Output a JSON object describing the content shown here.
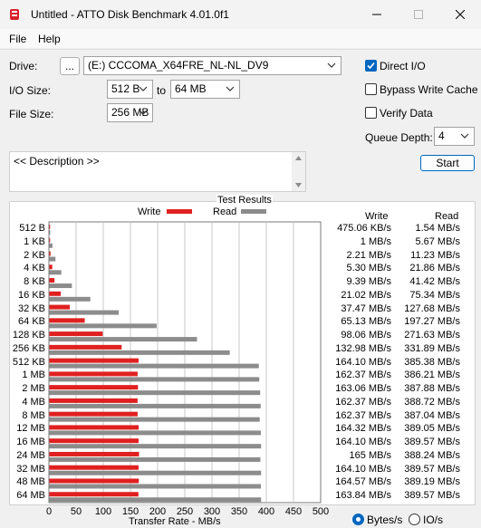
{
  "window": {
    "title": "Untitled - ATTO Disk Benchmark 4.01.0f1"
  },
  "menu": [
    "File",
    "Help"
  ],
  "settings": {
    "drive_label": "Drive:",
    "browse_label": "...",
    "drive_value": "(E:) CCCOMA_X64FRE_NL-NL_DV9",
    "io_size_label": "I/O Size:",
    "io_from": "512 B",
    "io_to_label": "to",
    "io_to": "64 MB",
    "file_size_label": "File Size:",
    "file_size": "256 MB",
    "direct_io_label": "Direct I/O",
    "direct_io_checked": true,
    "bypass_write_cache_label": "Bypass Write Cache",
    "bypass_write_cache_checked": false,
    "verify_data_label": "Verify Data",
    "verify_data_checked": false,
    "queue_depth_label": "Queue Depth:",
    "queue_depth": "4",
    "start_label": "Start",
    "description": "<< Description >>"
  },
  "results": {
    "title": "Test Results",
    "legend_write": "Write",
    "legend_read": "Read",
    "col_write": "Write",
    "col_read": "Read",
    "xlabel": "Transfer Rate - MB/s",
    "unit_bytes": "Bytes/s",
    "unit_io": "IO/s",
    "unit_selected": "bytes",
    "colors": {
      "write": "#e02020",
      "read": "#8c8c8c"
    }
  },
  "chart_data": {
    "type": "bar",
    "orientation": "horizontal",
    "categories": [
      "512 B",
      "1 KB",
      "2 KB",
      "4 KB",
      "8 KB",
      "16 KB",
      "32 KB",
      "64 KB",
      "128 KB",
      "256 KB",
      "512 KB",
      "1 MB",
      "2 MB",
      "4 MB",
      "8 MB",
      "12 MB",
      "16 MB",
      "24 MB",
      "32 MB",
      "48 MB",
      "64 MB"
    ],
    "series": [
      {
        "name": "Write",
        "values": [
          0.46,
          1,
          2.21,
          5.3,
          9.39,
          21.02,
          37.47,
          65.13,
          98.06,
          132.98,
          164.1,
          162.37,
          163.06,
          162.37,
          162.37,
          164.32,
          164.1,
          165,
          164.1,
          164.57,
          163.84
        ]
      },
      {
        "name": "Read",
        "values": [
          1.54,
          5.67,
          11.23,
          21.86,
          41.42,
          75.34,
          127.68,
          197.27,
          271.63,
          331.89,
          385.38,
          386.21,
          387.88,
          388.72,
          387.04,
          389.05,
          389.57,
          388.24,
          389.57,
          389.19,
          389.57
        ]
      }
    ],
    "write_text": [
      "475.06 KB/s",
      "1 MB/s",
      "2.21 MB/s",
      "5.30 MB/s",
      "9.39 MB/s",
      "21.02 MB/s",
      "37.47 MB/s",
      "65.13 MB/s",
      "98.06 MB/s",
      "132.98 MB/s",
      "164.10 MB/s",
      "162.37 MB/s",
      "163.06 MB/s",
      "162.37 MB/s",
      "162.37 MB/s",
      "164.32 MB/s",
      "164.10 MB/s",
      "165 MB/s",
      "164.10 MB/s",
      "164.57 MB/s",
      "163.84 MB/s"
    ],
    "read_text": [
      "1.54 MB/s",
      "5.67 MB/s",
      "11.23 MB/s",
      "21.86 MB/s",
      "41.42 MB/s",
      "75.34 MB/s",
      "127.68 MB/s",
      "197.27 MB/s",
      "271.63 MB/s",
      "331.89 MB/s",
      "385.38 MB/s",
      "386.21 MB/s",
      "387.88 MB/s",
      "388.72 MB/s",
      "387.04 MB/s",
      "389.05 MB/s",
      "389.57 MB/s",
      "388.24 MB/s",
      "389.57 MB/s",
      "389.19 MB/s",
      "389.57 MB/s"
    ],
    "xticks": [
      "0",
      "50",
      "100",
      "150",
      "200",
      "250",
      "300",
      "350",
      "400",
      "450",
      "500"
    ],
    "xlim": [
      0,
      500
    ],
    "xlabel": "Transfer Rate - MB/s",
    "grid": true
  }
}
